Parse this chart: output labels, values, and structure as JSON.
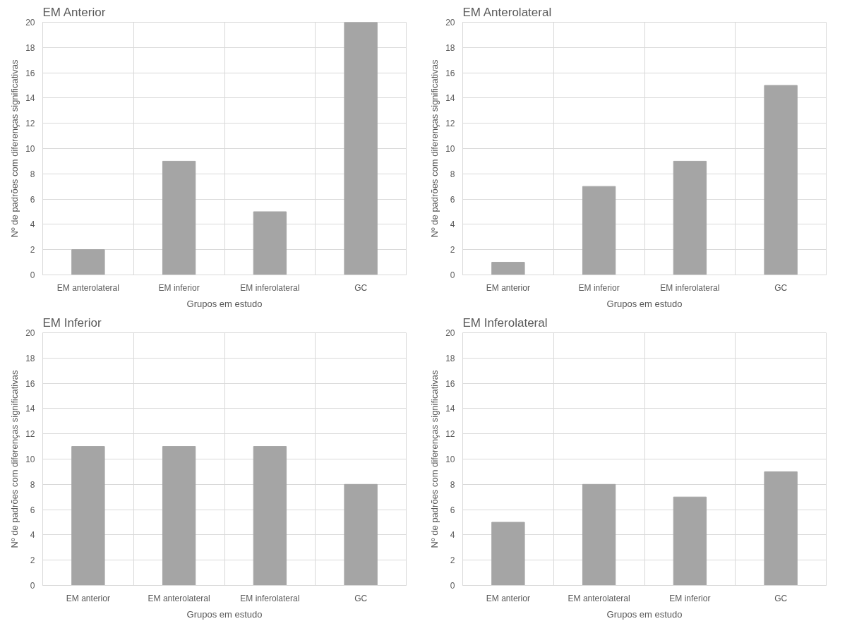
{
  "chart_data": [
    {
      "type": "bar",
      "title": "EM Anterior",
      "xlabel": "Grupos em estudo",
      "ylabel": "Nº de padrões com diferenças significativas",
      "categories": [
        "EM anterolateral",
        "EM inferior",
        "EM inferolateral",
        "GC"
      ],
      "values": [
        2,
        9,
        5,
        20
      ],
      "color": "#a5a5a5",
      "ylim": [
        0,
        20
      ],
      "yticks": [
        0,
        2,
        4,
        6,
        8,
        10,
        12,
        14,
        16,
        18,
        20
      ],
      "grid": true
    },
    {
      "type": "bar",
      "title": "EM Anterolateral",
      "xlabel": "Grupos em estudo",
      "ylabel": "Nº de padrões com diferenças significativas",
      "categories": [
        "EM anterior",
        "EM inferior",
        "EM inferolateral",
        "GC"
      ],
      "values": [
        1,
        7,
        9,
        15
      ],
      "color": "#a5a5a5",
      "ylim": [
        0,
        20
      ],
      "yticks": [
        0,
        2,
        4,
        6,
        8,
        10,
        12,
        14,
        16,
        18,
        20
      ],
      "grid": true
    },
    {
      "type": "bar",
      "title": "EM Inferior",
      "xlabel": "Grupos em estudo",
      "ylabel": "Nº de padrões com diferenças significativas",
      "categories": [
        "EM anterior",
        "EM anterolateral",
        "EM inferolateral",
        "GC"
      ],
      "values": [
        11,
        11,
        11,
        8
      ],
      "color": "#a5a5a5",
      "ylim": [
        0,
        20
      ],
      "yticks": [
        0,
        2,
        4,
        6,
        8,
        10,
        12,
        14,
        16,
        18,
        20
      ],
      "grid": true
    },
    {
      "type": "bar",
      "title": "EM Inferolateral",
      "xlabel": "Grupos em estudo",
      "ylabel": "Nº de padrões com diferenças significativas",
      "categories": [
        "EM anterior",
        "EM anterolateral",
        "EM inferior",
        "GC"
      ],
      "values": [
        5,
        8,
        7,
        9
      ],
      "color": "#a5a5a5",
      "ylim": [
        0,
        20
      ],
      "yticks": [
        0,
        2,
        4,
        6,
        8,
        10,
        12,
        14,
        16,
        18,
        20
      ],
      "grid": true
    }
  ]
}
